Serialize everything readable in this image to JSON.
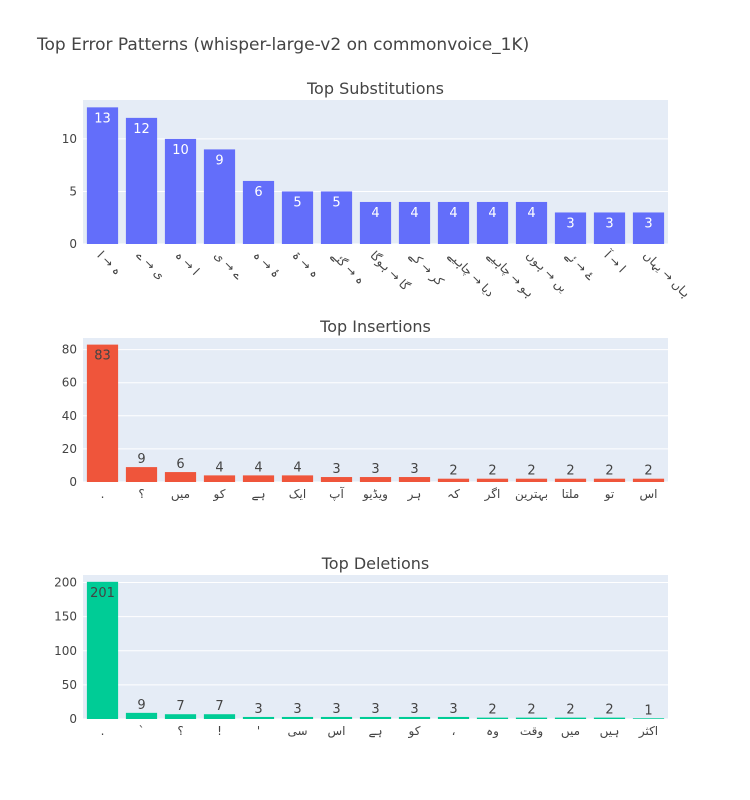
{
  "title": "Top Error Patterns (whisper-large-v2 on commonvoice_1K)",
  "chart_data": [
    {
      "type": "bar",
      "title": "Top Substitutions",
      "color": "#636efa",
      "inside_text_color": "#ffffff",
      "categories": [
        "ہ → ا",
        "ی → ے",
        "ا → ہ",
        "ے → ی",
        "ۂ → ہ",
        "ہ → ۃ",
        "ہ → گئے",
        "گا → ہوگا",
        "کر → کے",
        "دیا → چاہیے",
        "ہو → چاہیے",
        "یں → ہوں",
        "ۓ → ئے",
        "ا → آ",
        "ہاں → یہاں"
      ],
      "values": [
        13,
        12,
        10,
        9,
        6,
        5,
        5,
        4,
        4,
        4,
        4,
        4,
        3,
        3,
        3
      ],
      "ylim": [
        0,
        13.7
      ],
      "yticks": [
        0,
        5,
        10
      ],
      "grid": true,
      "rotate_labels": true
    },
    {
      "type": "bar",
      "title": "Top Insertions",
      "color": "#ef553b",
      "inside_text_color": "#444444",
      "categories": [
        ".",
        "؟",
        "میں",
        "کو",
        "ہے",
        "ایک",
        "آپ",
        "ویڈیو",
        "ہر",
        "کہ",
        "اگر",
        "بہترین",
        "ملتا",
        "تو",
        "اس"
      ],
      "values": [
        83,
        9,
        6,
        4,
        4,
        4,
        3,
        3,
        3,
        2,
        2,
        2,
        2,
        2,
        2
      ],
      "ylim": [
        0,
        87
      ],
      "yticks": [
        0,
        20,
        40,
        60,
        80
      ],
      "grid": true,
      "rotate_labels": false
    },
    {
      "type": "bar",
      "title": "Top Deletions",
      "color": "#00cc96",
      "inside_text_color": "#444444",
      "categories": [
        ".",
        "`",
        "؟",
        "!",
        "'",
        "سی",
        "اس",
        "ہے",
        "کو",
        "،",
        "وہ",
        "وقت",
        "میں",
        "ہیں",
        "اکثر"
      ],
      "values": [
        201,
        9,
        7,
        7,
        3,
        3,
        3,
        3,
        3,
        3,
        2,
        2,
        2,
        2,
        1
      ],
      "ylim": [
        0,
        211
      ],
      "yticks": [
        0,
        50,
        100,
        150,
        200
      ],
      "grid": true,
      "rotate_labels": false
    }
  ]
}
